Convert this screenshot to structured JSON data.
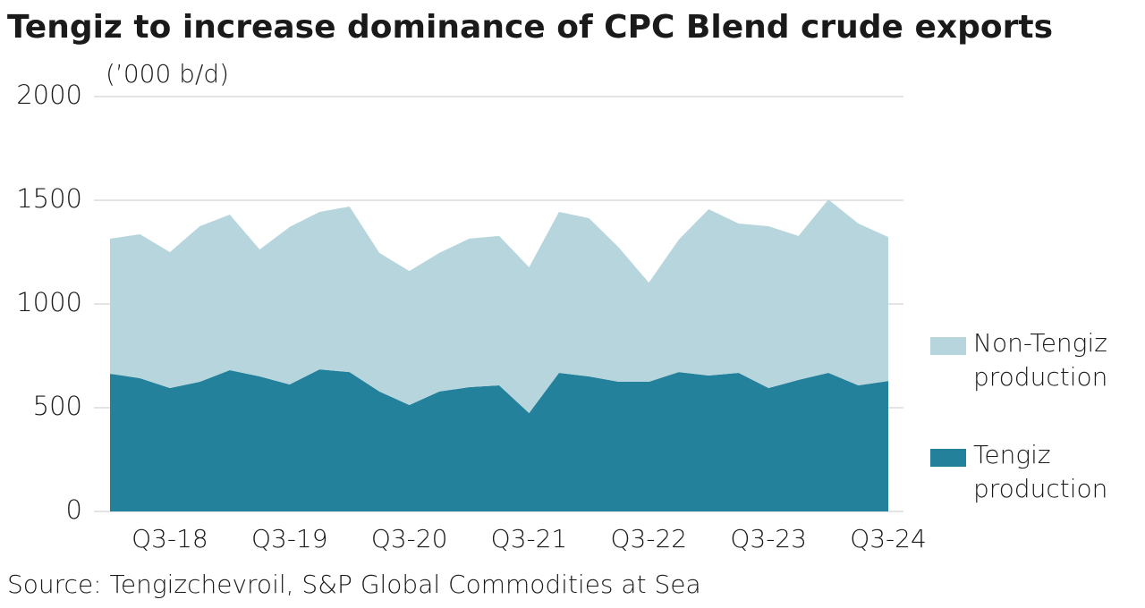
{
  "chart_data": {
    "type": "stacked-area",
    "title": "Tengiz to increase dominance of CPC Blend crude exports",
    "subtitle": "(’000 b/d)",
    "source": "Source: Tengizchevroil, S&P Global Commodities at Sea",
    "categories": [
      null,
      null,
      "Q3-18",
      null,
      null,
      null,
      "Q3-19",
      null,
      null,
      null,
      "Q3-20",
      null,
      null,
      null,
      "Q3-21",
      null,
      null,
      null,
      "Q3-22",
      null,
      null,
      null,
      "Q3-23",
      null,
      null,
      null,
      "Q3-24"
    ],
    "series": [
      {
        "name": "Tengiz production",
        "color": "#23819b",
        "values": [
          664,
          642,
          595,
          625,
          681,
          651,
          612,
          685,
          672,
          578,
          513,
          578,
          599,
          608,
          474,
          668,
          651,
          625,
          625,
          672,
          655,
          668,
          595,
          634,
          668,
          608,
          629
        ]
      },
      {
        "name": "Non-Tengiz production",
        "color": "#b7d5dd",
        "values": [
          651,
          694,
          655,
          750,
          750,
          612,
          759,
          759,
          798,
          668,
          646,
          668,
          716,
          720,
          703,
          776,
          763,
          647,
          478,
          638,
          802,
          720,
          780,
          694,
          836,
          780,
          694
        ]
      }
    ],
    "ylim": [
      0,
      2000
    ],
    "yticks": [
      0,
      500,
      1000,
      1500,
      2000
    ],
    "grid": true,
    "legend": "right"
  }
}
